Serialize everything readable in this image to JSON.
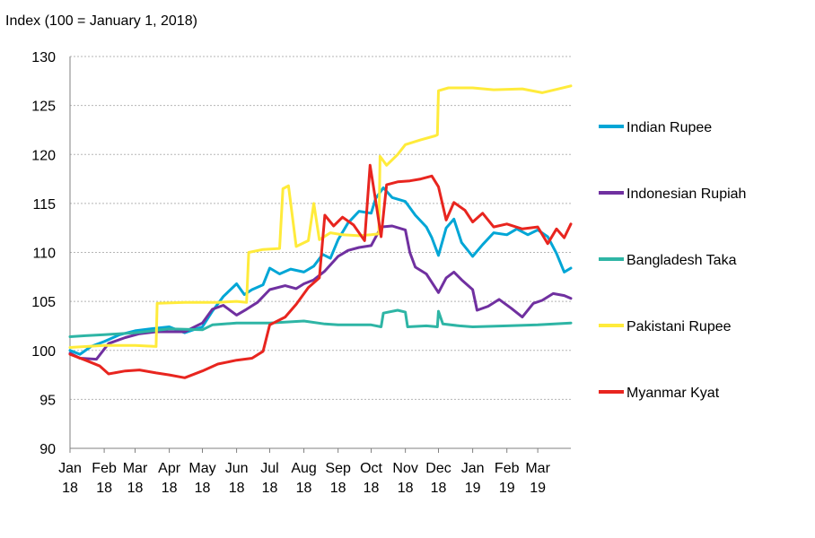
{
  "chart_data": {
    "type": "line",
    "ylabel": "Index (100 = January 1, 2018)",
    "ylim": [
      90,
      130
    ],
    "yticks": [
      90,
      95,
      100,
      105,
      110,
      115,
      120,
      125,
      130
    ],
    "xlim": [
      "2018-01-01",
      "2019-03-31"
    ],
    "grid": "horizontal dashed",
    "legend_position": "right",
    "xticks": [
      {
        "date": "2018-01-01",
        "month": "Jan",
        "year": "18"
      },
      {
        "date": "2018-02-01",
        "month": "Feb",
        "year": "18"
      },
      {
        "date": "2018-03-01",
        "month": "Mar",
        "year": "18"
      },
      {
        "date": "2018-04-01",
        "month": "Apr",
        "year": "18"
      },
      {
        "date": "2018-05-01",
        "month": "May",
        "year": "18"
      },
      {
        "date": "2018-06-01",
        "month": "Jun",
        "year": "18"
      },
      {
        "date": "2018-07-01",
        "month": "Jul",
        "year": "18"
      },
      {
        "date": "2018-08-01",
        "month": "Aug",
        "year": "18"
      },
      {
        "date": "2018-09-01",
        "month": "Sep",
        "year": "18"
      },
      {
        "date": "2018-10-01",
        "month": "Oct",
        "year": "18"
      },
      {
        "date": "2018-11-01",
        "month": "Nov",
        "year": "18"
      },
      {
        "date": "2018-12-01",
        "month": "Dec",
        "year": "18"
      },
      {
        "date": "2019-01-01",
        "month": "Jan",
        "year": "19"
      },
      {
        "date": "2019-02-01",
        "month": "Feb",
        "year": "19"
      },
      {
        "date": "2019-03-01",
        "month": "Mar",
        "year": "19"
      }
    ],
    "series": [
      {
        "name": "Indian Rupee",
        "color": "#00A6D6",
        "points": [
          [
            "2018-01-01",
            100.0
          ],
          [
            "2018-01-10",
            99.6
          ],
          [
            "2018-01-20",
            100.4
          ],
          [
            "2018-02-01",
            100.9
          ],
          [
            "2018-02-15",
            101.6
          ],
          [
            "2018-03-01",
            102.0
          ],
          [
            "2018-03-15",
            102.2
          ],
          [
            "2018-04-01",
            102.4
          ],
          [
            "2018-04-15",
            101.8
          ],
          [
            "2018-05-01",
            102.4
          ],
          [
            "2018-05-10",
            104.0
          ],
          [
            "2018-05-20",
            105.5
          ],
          [
            "2018-06-01",
            106.8
          ],
          [
            "2018-06-08",
            105.7
          ],
          [
            "2018-06-15",
            106.2
          ],
          [
            "2018-06-25",
            106.7
          ],
          [
            "2018-07-01",
            108.4
          ],
          [
            "2018-07-10",
            107.8
          ],
          [
            "2018-07-20",
            108.3
          ],
          [
            "2018-08-01",
            108.0
          ],
          [
            "2018-08-10",
            108.6
          ],
          [
            "2018-08-18",
            109.8
          ],
          [
            "2018-08-25",
            109.4
          ],
          [
            "2018-09-01",
            111.3
          ],
          [
            "2018-09-10",
            113.0
          ],
          [
            "2018-09-20",
            114.2
          ],
          [
            "2018-10-01",
            114.0
          ],
          [
            "2018-10-05",
            115.5
          ],
          [
            "2018-10-12",
            116.6
          ],
          [
            "2018-10-20",
            115.6
          ],
          [
            "2018-11-01",
            115.2
          ],
          [
            "2018-11-10",
            113.8
          ],
          [
            "2018-11-20",
            112.6
          ],
          [
            "2018-11-25",
            111.5
          ],
          [
            "2018-12-01",
            109.7
          ],
          [
            "2018-12-08",
            112.5
          ],
          [
            "2018-12-15",
            113.4
          ],
          [
            "2018-12-22",
            111.0
          ],
          [
            "2019-01-01",
            109.6
          ],
          [
            "2019-01-10",
            110.8
          ],
          [
            "2019-01-20",
            112.0
          ],
          [
            "2019-02-01",
            111.8
          ],
          [
            "2019-02-10",
            112.4
          ],
          [
            "2019-02-20",
            111.8
          ],
          [
            "2019-03-01",
            112.3
          ],
          [
            "2019-03-10",
            111.6
          ],
          [
            "2019-03-18",
            109.9
          ],
          [
            "2019-03-25",
            108.0
          ],
          [
            "2019-03-31",
            108.4
          ]
        ]
      },
      {
        "name": "Indonesian Rupiah",
        "color": "#7030A0",
        "points": [
          [
            "2018-01-01",
            99.7
          ],
          [
            "2018-01-10",
            99.2
          ],
          [
            "2018-01-25",
            99.1
          ],
          [
            "2018-02-05",
            100.7
          ],
          [
            "2018-02-20",
            101.3
          ],
          [
            "2018-03-05",
            101.7
          ],
          [
            "2018-03-20",
            101.9
          ],
          [
            "2018-04-01",
            101.9
          ],
          [
            "2018-04-15",
            101.9
          ],
          [
            "2018-05-01",
            102.8
          ],
          [
            "2018-05-10",
            104.2
          ],
          [
            "2018-05-20",
            104.6
          ],
          [
            "2018-06-01",
            103.6
          ],
          [
            "2018-06-10",
            104.2
          ],
          [
            "2018-06-20",
            104.9
          ],
          [
            "2018-07-01",
            106.2
          ],
          [
            "2018-07-15",
            106.6
          ],
          [
            "2018-07-25",
            106.3
          ],
          [
            "2018-08-01",
            106.8
          ],
          [
            "2018-08-10",
            107.2
          ],
          [
            "2018-08-20",
            108.1
          ],
          [
            "2018-09-01",
            109.6
          ],
          [
            "2018-09-10",
            110.2
          ],
          [
            "2018-09-20",
            110.5
          ],
          [
            "2018-10-01",
            110.7
          ],
          [
            "2018-10-10",
            112.6
          ],
          [
            "2018-10-20",
            112.7
          ],
          [
            "2018-11-01",
            112.3
          ],
          [
            "2018-11-05",
            110.0
          ],
          [
            "2018-11-10",
            108.5
          ],
          [
            "2018-11-20",
            107.8
          ],
          [
            "2018-12-01",
            105.9
          ],
          [
            "2018-12-08",
            107.4
          ],
          [
            "2018-12-15",
            108.0
          ],
          [
            "2018-12-22",
            107.2
          ],
          [
            "2019-01-01",
            106.2
          ],
          [
            "2019-01-05",
            104.1
          ],
          [
            "2019-01-15",
            104.5
          ],
          [
            "2019-01-25",
            105.2
          ],
          [
            "2019-02-05",
            104.3
          ],
          [
            "2019-02-15",
            103.4
          ],
          [
            "2019-02-25",
            104.8
          ],
          [
            "2019-03-05",
            105.1
          ],
          [
            "2019-03-15",
            105.8
          ],
          [
            "2019-03-25",
            105.6
          ],
          [
            "2019-03-31",
            105.3
          ]
        ]
      },
      {
        "name": "Bangladesh Taka",
        "color": "#2EB5A5",
        "points": [
          [
            "2018-01-01",
            101.4
          ],
          [
            "2018-01-15",
            101.5
          ],
          [
            "2018-02-01",
            101.6
          ],
          [
            "2018-03-01",
            101.8
          ],
          [
            "2018-04-01",
            102.2
          ],
          [
            "2018-05-01",
            102.1
          ],
          [
            "2018-05-10",
            102.6
          ],
          [
            "2018-06-01",
            102.8
          ],
          [
            "2018-07-01",
            102.8
          ],
          [
            "2018-08-01",
            103.0
          ],
          [
            "2018-08-20",
            102.7
          ],
          [
            "2018-09-01",
            102.6
          ],
          [
            "2018-10-01",
            102.6
          ],
          [
            "2018-10-10",
            102.4
          ],
          [
            "2018-10-12",
            103.8
          ],
          [
            "2018-10-25",
            104.1
          ],
          [
            "2018-11-01",
            103.9
          ],
          [
            "2018-11-03",
            102.4
          ],
          [
            "2018-11-20",
            102.5
          ],
          [
            "2018-11-30",
            102.4
          ],
          [
            "2018-12-01",
            104.0
          ],
          [
            "2018-12-05",
            102.7
          ],
          [
            "2018-12-20",
            102.5
          ],
          [
            "2019-01-01",
            102.4
          ],
          [
            "2019-02-01",
            102.5
          ],
          [
            "2019-03-01",
            102.6
          ],
          [
            "2019-03-31",
            102.8
          ]
        ]
      },
      {
        "name": "Pakistani Rupee",
        "color": "#FFEB3B",
        "points": [
          [
            "2018-01-01",
            100.3
          ],
          [
            "2018-02-01",
            100.5
          ],
          [
            "2018-03-01",
            100.5
          ],
          [
            "2018-03-20",
            100.4
          ],
          [
            "2018-03-21",
            104.8
          ],
          [
            "2018-04-15",
            104.9
          ],
          [
            "2018-05-15",
            104.9
          ],
          [
            "2018-06-01",
            105.0
          ],
          [
            "2018-06-10",
            104.9
          ],
          [
            "2018-06-12",
            110.0
          ],
          [
            "2018-06-25",
            110.3
          ],
          [
            "2018-07-10",
            110.4
          ],
          [
            "2018-07-13",
            116.5
          ],
          [
            "2018-07-18",
            116.8
          ],
          [
            "2018-07-25",
            110.6
          ],
          [
            "2018-08-05",
            111.2
          ],
          [
            "2018-08-10",
            115.0
          ],
          [
            "2018-08-15",
            111.3
          ],
          [
            "2018-08-25",
            112.0
          ],
          [
            "2018-09-05",
            111.8
          ],
          [
            "2018-09-20",
            111.7
          ],
          [
            "2018-10-01",
            111.8
          ],
          [
            "2018-10-08",
            111.9
          ],
          [
            "2018-10-09",
            119.8
          ],
          [
            "2018-10-15",
            118.9
          ],
          [
            "2018-10-25",
            120.0
          ],
          [
            "2018-11-01",
            121.0
          ],
          [
            "2018-11-15",
            121.5
          ],
          [
            "2018-11-28",
            121.9
          ],
          [
            "2018-11-30",
            122.0
          ],
          [
            "2018-12-01",
            126.5
          ],
          [
            "2018-12-10",
            126.8
          ],
          [
            "2019-01-01",
            126.8
          ],
          [
            "2019-01-20",
            126.6
          ],
          [
            "2019-02-15",
            126.7
          ],
          [
            "2019-03-05",
            126.3
          ],
          [
            "2019-03-20",
            126.7
          ],
          [
            "2019-03-31",
            127.0
          ]
        ]
      },
      {
        "name": "Myanmar Kyat",
        "color": "#E8251F",
        "points": [
          [
            "2018-01-01",
            99.6
          ],
          [
            "2018-01-15",
            99.0
          ],
          [
            "2018-01-28",
            98.4
          ],
          [
            "2018-02-05",
            97.6
          ],
          [
            "2018-02-20",
            97.9
          ],
          [
            "2018-03-05",
            98.0
          ],
          [
            "2018-03-20",
            97.7
          ],
          [
            "2018-04-01",
            97.5
          ],
          [
            "2018-04-15",
            97.2
          ],
          [
            "2018-05-01",
            97.9
          ],
          [
            "2018-05-15",
            98.6
          ],
          [
            "2018-06-01",
            99.0
          ],
          [
            "2018-06-15",
            99.2
          ],
          [
            "2018-06-25",
            99.9
          ],
          [
            "2018-07-01",
            102.6
          ],
          [
            "2018-07-15",
            103.4
          ],
          [
            "2018-07-25",
            104.7
          ],
          [
            "2018-08-05",
            106.4
          ],
          [
            "2018-08-15",
            107.4
          ],
          [
            "2018-08-20",
            113.8
          ],
          [
            "2018-08-28",
            112.7
          ],
          [
            "2018-09-05",
            113.6
          ],
          [
            "2018-09-15",
            112.8
          ],
          [
            "2018-09-25",
            111.2
          ],
          [
            "2018-09-30",
            118.9
          ],
          [
            "2018-10-05",
            115.3
          ],
          [
            "2018-10-10",
            111.6
          ],
          [
            "2018-10-15",
            116.9
          ],
          [
            "2018-10-25",
            117.2
          ],
          [
            "2018-11-05",
            117.3
          ],
          [
            "2018-11-15",
            117.5
          ],
          [
            "2018-11-25",
            117.8
          ],
          [
            "2018-12-01",
            116.7
          ],
          [
            "2018-12-08",
            113.3
          ],
          [
            "2018-12-15",
            115.1
          ],
          [
            "2018-12-25",
            114.3
          ],
          [
            "2019-01-01",
            113.1
          ],
          [
            "2019-01-10",
            114.0
          ],
          [
            "2019-01-20",
            112.6
          ],
          [
            "2019-02-01",
            112.9
          ],
          [
            "2019-02-15",
            112.4
          ],
          [
            "2019-03-01",
            112.6
          ],
          [
            "2019-03-10",
            110.9
          ],
          [
            "2019-03-18",
            112.4
          ],
          [
            "2019-03-25",
            111.5
          ],
          [
            "2019-03-31",
            112.9
          ]
        ]
      }
    ]
  }
}
